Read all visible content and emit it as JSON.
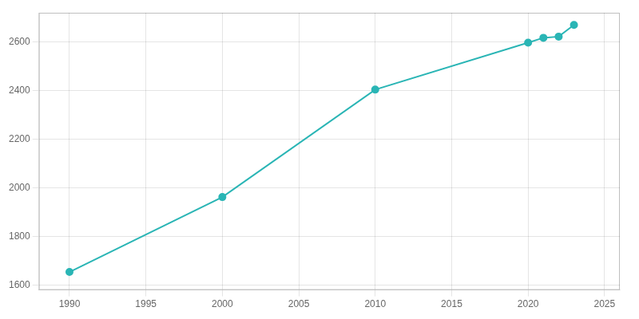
{
  "chart_data": {
    "type": "line",
    "x": [
      1990,
      2000,
      2010,
      2020,
      2021,
      2022,
      2023
    ],
    "values": [
      1654,
      1962,
      2404,
      2597,
      2617,
      2622,
      2670
    ],
    "color": "#2ab5b5",
    "marker": "circle",
    "xlim": [
      1988,
      2026
    ],
    "ylim": [
      1580,
      2720
    ],
    "xticks": [
      1990,
      1995,
      2000,
      2005,
      2010,
      2015,
      2020,
      2025
    ],
    "yticks": [
      1600,
      1800,
      2000,
      2200,
      2400,
      2600
    ],
    "grid": true
  }
}
